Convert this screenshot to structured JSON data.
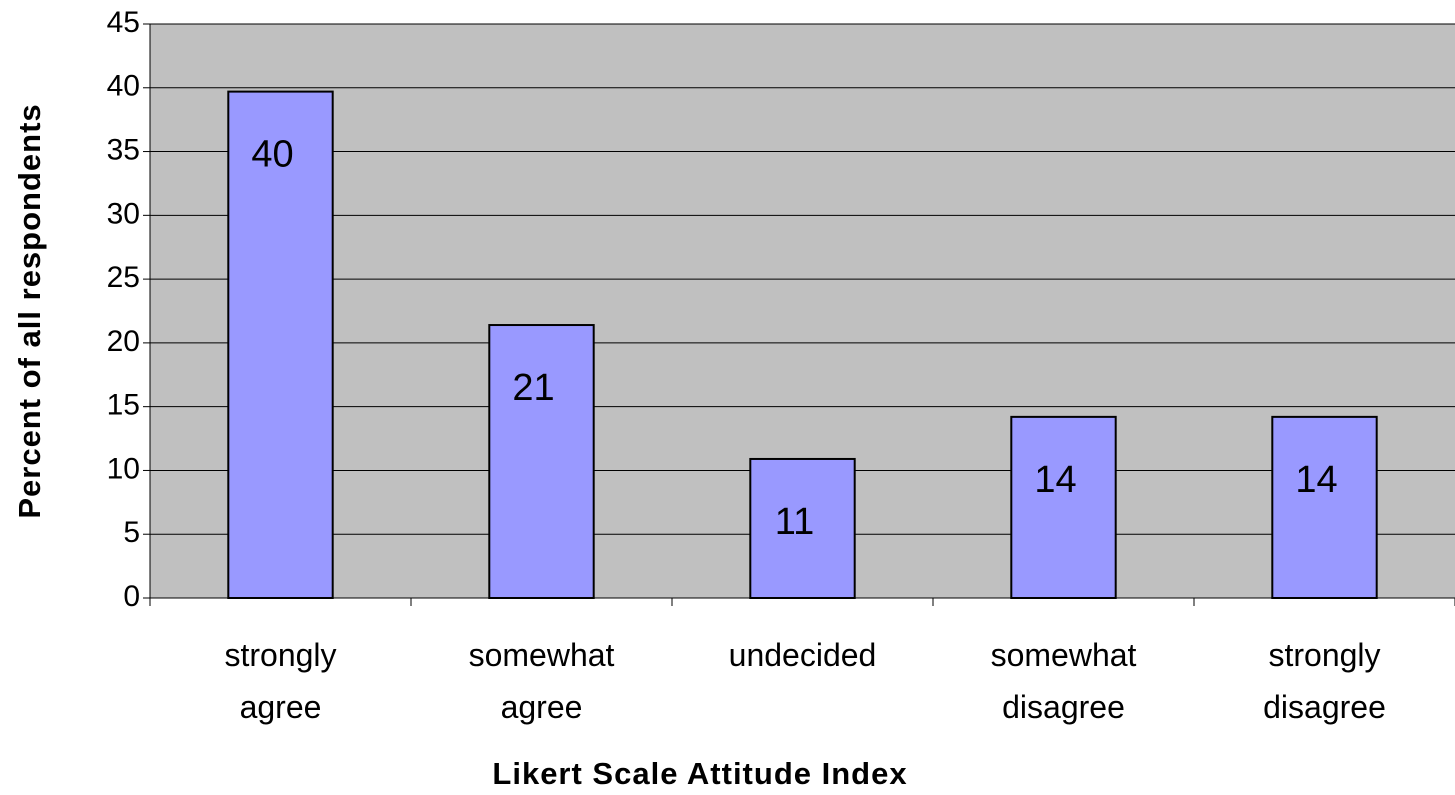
{
  "chart_data": {
    "type": "bar",
    "x_label": "Likert Scale Attitude Index",
    "y_label": "Percent of all respondents",
    "categories": [
      "strongly agree",
      "somewhat agree",
      "undecided",
      "somewhat disagree",
      "strongly disagree"
    ],
    "values": [
      39.7,
      21.4,
      10.9,
      14.2,
      14.2
    ],
    "value_labels": [
      "40",
      "21",
      "11",
      "14",
      "14"
    ],
    "color": "#9999ff",
    "ylim": [
      0,
      45
    ],
    "yticks": [
      0,
      5,
      10,
      15,
      20,
      25,
      30,
      35,
      40,
      45
    ],
    "grid": true
  }
}
